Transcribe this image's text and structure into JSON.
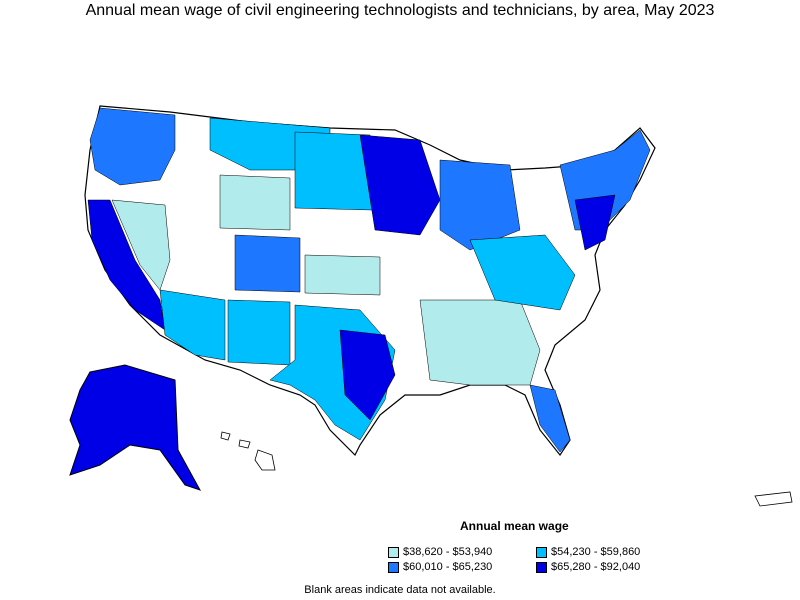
{
  "title": "Annual mean wage of civil engineering technologists and technicians, by area, May 2023",
  "legend": {
    "title": "Annual mean wage",
    "items": [
      {
        "label": "$38,620 - $53,940",
        "color": "#b2ebeb"
      },
      {
        "label": "$54,230 - $59,860",
        "color": "#00bfff"
      },
      {
        "label": "$60,010 - $65,230",
        "color": "#1e78ff"
      },
      {
        "label": "$65,280 - $92,040",
        "color": "#0000e6"
      }
    ]
  },
  "footnote": "Blank areas indicate data not available."
}
